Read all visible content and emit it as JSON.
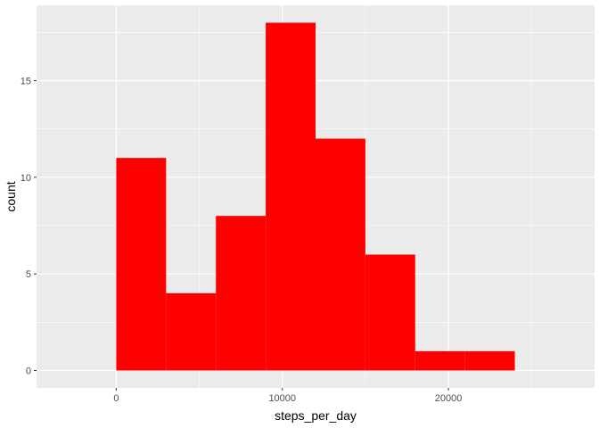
{
  "chart_data": {
    "type": "bar",
    "subtype": "histogram",
    "title": "",
    "xlabel": "steps_per_day",
    "ylabel": "count",
    "bins": [
      {
        "x0": 0,
        "x1": 3000,
        "count": 11
      },
      {
        "x0": 3000,
        "x1": 6000,
        "count": 4
      },
      {
        "x0": 6000,
        "x1": 9000,
        "count": 8
      },
      {
        "x0": 9000,
        "x1": 12000,
        "count": 18
      },
      {
        "x0": 12000,
        "x1": 15000,
        "count": 12
      },
      {
        "x0": 15000,
        "x1": 18000,
        "count": 6
      },
      {
        "x0": 18000,
        "x1": 21000,
        "count": 1
      },
      {
        "x0": 21000,
        "x1": 24000,
        "count": 1
      }
    ],
    "xlim": [
      -4800,
      28800
    ],
    "ylim": [
      -0.9,
      18.9
    ],
    "x_ticks": [
      0,
      10000,
      20000
    ],
    "x_minor_ticks": [
      -5000,
      5000,
      15000,
      25000
    ],
    "y_ticks": [
      0,
      5,
      10,
      15
    ],
    "y_minor_ticks": [
      2.5,
      7.5,
      12.5,
      17.5
    ],
    "x_tick_labels": [
      "0",
      "10000",
      "20000"
    ],
    "y_tick_labels": [
      "0",
      "5",
      "10",
      "15"
    ],
    "grid": true,
    "colors": {
      "bar_fill": "#ff0000",
      "panel_background": "#ebebeb",
      "grid": "#ffffff"
    }
  }
}
